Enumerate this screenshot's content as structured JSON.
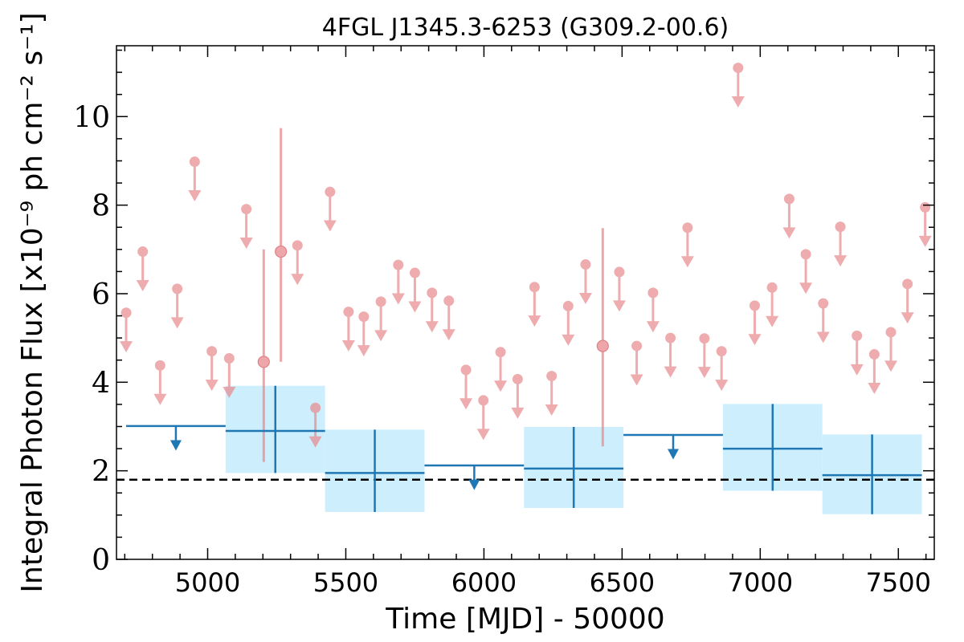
{
  "chart_data": {
    "type": "scatter",
    "title": "4FGL J1345.3-6253 (G309.2-00.6)",
    "xlabel": "Time [MJD] - 50000",
    "ylabel": "Integral Photon Flux [x10⁻⁹ ph cm⁻² s⁻¹]",
    "xlim": [
      4670,
      7630
    ],
    "ylim": [
      0,
      11.6
    ],
    "xticks": [
      5000,
      5500,
      6000,
      6500,
      7000,
      7500
    ],
    "yticks": [
      0,
      2,
      4,
      6,
      8,
      10
    ],
    "grid": false,
    "reference_line": {
      "y": 1.8,
      "style": "dashed",
      "color": "#000000"
    },
    "colors": {
      "short": "#e8898e",
      "long": "#1f77b4",
      "band": "#cdeefd"
    },
    "series": [
      {
        "upper_limits": [
          {
            "x": 4705,
            "y": 5.57
          },
          {
            "x": 4765,
            "y": 6.95
          },
          {
            "x": 4828,
            "y": 4.38
          },
          {
            "x": 4890,
            "y": 6.11
          },
          {
            "x": 4953,
            "y": 8.98
          },
          {
            "x": 5015,
            "y": 4.7
          },
          {
            "x": 5078,
            "y": 4.54
          },
          {
            "x": 5140,
            "y": 7.91
          },
          {
            "x": 5325,
            "y": 7.09
          },
          {
            "x": 5390,
            "y": 3.42
          },
          {
            "x": 5443,
            "y": 8.3
          },
          {
            "x": 5510,
            "y": 5.59
          },
          {
            "x": 5565,
            "y": 5.48
          },
          {
            "x": 5627,
            "y": 5.82
          },
          {
            "x": 5690,
            "y": 6.65
          },
          {
            "x": 5750,
            "y": 6.47
          },
          {
            "x": 5812,
            "y": 6.02
          },
          {
            "x": 5873,
            "y": 5.84
          },
          {
            "x": 5935,
            "y": 4.28
          },
          {
            "x": 5998,
            "y": 3.59
          },
          {
            "x": 6060,
            "y": 4.68
          },
          {
            "x": 6122,
            "y": 4.07
          },
          {
            "x": 6183,
            "y": 6.15
          },
          {
            "x": 6245,
            "y": 4.14
          },
          {
            "x": 6305,
            "y": 5.72
          },
          {
            "x": 6368,
            "y": 6.66
          },
          {
            "x": 6490,
            "y": 6.49
          },
          {
            "x": 6553,
            "y": 4.82
          },
          {
            "x": 6612,
            "y": 6.02
          },
          {
            "x": 6675,
            "y": 5.0
          },
          {
            "x": 6737,
            "y": 7.49
          },
          {
            "x": 6798,
            "y": 4.99
          },
          {
            "x": 6860,
            "y": 4.7
          },
          {
            "x": 6920,
            "y": 11.1
          },
          {
            "x": 6980,
            "y": 5.73
          },
          {
            "x": 7043,
            "y": 6.14
          },
          {
            "x": 7105,
            "y": 8.14
          },
          {
            "x": 7165,
            "y": 6.89
          },
          {
            "x": 7228,
            "y": 5.78
          },
          {
            "x": 7290,
            "y": 7.51
          },
          {
            "x": 7350,
            "y": 5.05
          },
          {
            "x": 7413,
            "y": 4.63
          },
          {
            "x": 7473,
            "y": 5.13
          },
          {
            "x": 7533,
            "y": 6.22
          },
          {
            "x": 7597,
            "y": 7.95
          }
        ],
        "detections": [
          {
            "x": 5203,
            "y": 4.46,
            "ylo": 2.2,
            "yhi": 7.0
          },
          {
            "x": 5265,
            "y": 6.95,
            "ylo": 4.46,
            "yhi": 9.74
          },
          {
            "x": 6430,
            "y": 4.82,
            "ylo": 2.55,
            "yhi": 7.48
          }
        ]
      },
      {
        "bins": [
          {
            "x0": 4705,
            "x1": 5065,
            "y": 3.01,
            "upper_limit": true
          },
          {
            "x0": 5065,
            "x1": 5425,
            "y": 2.9,
            "ylo": 1.95,
            "yhi": 3.92
          },
          {
            "x0": 5425,
            "x1": 5785,
            "y": 1.95,
            "ylo": 1.07,
            "yhi": 2.93
          },
          {
            "x0": 5785,
            "x1": 6145,
            "y": 2.12,
            "upper_limit": true
          },
          {
            "x0": 6145,
            "x1": 6505,
            "y": 2.05,
            "ylo": 1.16,
            "yhi": 2.99
          },
          {
            "x0": 6505,
            "x1": 6865,
            "y": 2.81,
            "upper_limit": true
          },
          {
            "x0": 6865,
            "x1": 7225,
            "y": 2.5,
            "ylo": 1.55,
            "yhi": 3.51
          },
          {
            "x0": 7225,
            "x1": 7585,
            "y": 1.9,
            "ylo": 1.02,
            "yhi": 2.82
          }
        ]
      }
    ]
  }
}
